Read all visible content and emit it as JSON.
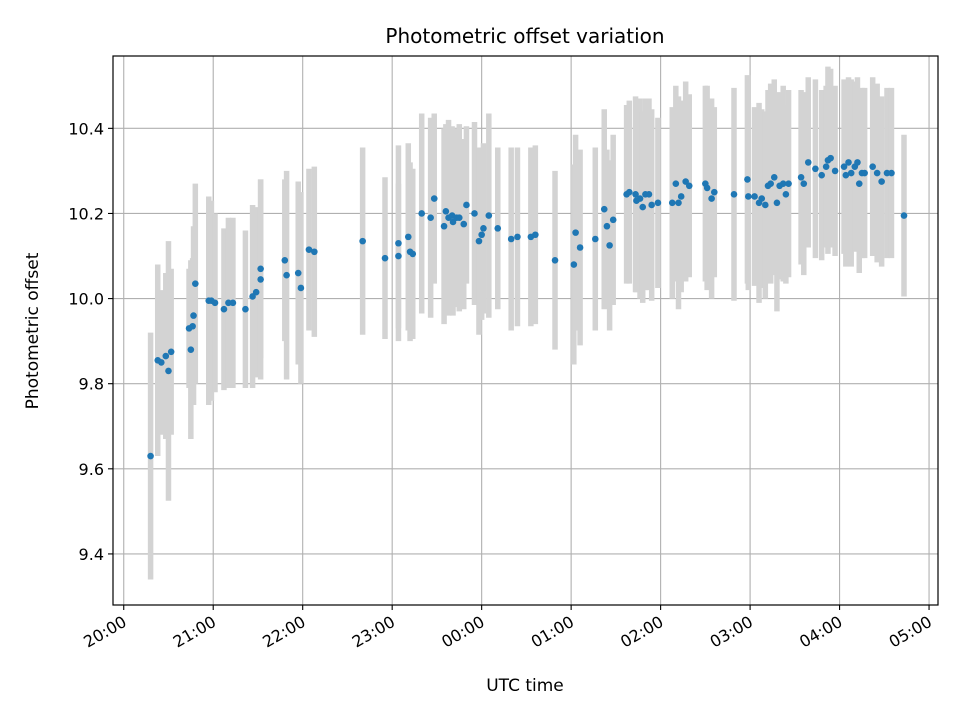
{
  "chart_data": {
    "type": "scatter",
    "title": "Photometric offset variation",
    "xlabel": "UTC time",
    "ylabel": "Photometric offset",
    "x_unit": "hours (UTC, continuous past midnight)",
    "xlim": [
      19.88,
      29.1
    ],
    "ylim": [
      9.28,
      10.57
    ],
    "x_tick_values": [
      20,
      21,
      22,
      23,
      24,
      25,
      26,
      27,
      28,
      29
    ],
    "x_tick_labels": [
      "20:00",
      "21:00",
      "22:00",
      "23:00",
      "00:00",
      "01:00",
      "02:00",
      "03:00",
      "04:00",
      "05:00"
    ],
    "y_ticks": [
      9.4,
      9.6,
      9.8,
      10.0,
      10.2,
      10.4
    ],
    "y_tick_labels": [
      "9.4",
      "9.6",
      "9.8",
      "10.0",
      "10.2",
      "10.4"
    ],
    "grid": true,
    "colors": {
      "point": "#1f77b4",
      "errorbar": "#d3d3d3",
      "grid": "#b0b0b0"
    },
    "x": [
      20.3,
      20.38,
      20.42,
      20.47,
      20.5,
      20.53,
      20.73,
      20.75,
      20.77,
      20.78,
      20.8,
      20.95,
      20.98,
      21.02,
      21.12,
      21.17,
      21.22,
      21.36,
      21.44,
      21.48,
      21.53,
      21.53,
      21.8,
      21.82,
      21.95,
      21.98,
      22.07,
      22.13,
      22.67,
      22.92,
      23.07,
      23.07,
      23.18,
      23.2,
      23.23,
      23.33,
      23.43,
      23.47,
      23.58,
      23.6,
      23.63,
      23.67,
      23.68,
      23.72,
      23.75,
      23.8,
      23.83,
      23.92,
      23.97,
      24.0,
      24.02,
      24.08,
      24.18,
      24.33,
      24.4,
      24.55,
      24.6,
      24.82,
      25.03,
      25.05,
      25.1,
      25.27,
      25.37,
      25.4,
      25.43,
      25.47,
      25.62,
      25.65,
      25.72,
      25.73,
      25.77,
      25.8,
      25.83,
      25.87,
      25.9,
      25.97,
      26.13,
      26.17,
      26.2,
      26.23,
      26.28,
      26.32,
      26.5,
      26.52,
      26.57,
      26.6,
      26.82,
      26.97,
      26.98,
      27.05,
      27.1,
      27.13,
      27.17,
      27.2,
      27.23,
      27.27,
      27.3,
      27.33,
      27.37,
      27.4,
      27.43,
      27.57,
      27.6,
      27.65,
      27.73,
      27.8,
      27.85,
      27.87,
      27.9,
      27.95,
      28.05,
      28.07,
      28.1,
      28.13,
      28.17,
      28.2,
      28.22,
      28.25,
      28.28,
      28.37,
      28.42,
      28.47,
      28.53,
      28.58,
      28.72
    ],
    "y": [
      9.63,
      9.855,
      9.85,
      9.865,
      9.83,
      9.875,
      9.93,
      9.88,
      9.935,
      9.96,
      10.035,
      9.995,
      9.995,
      9.99,
      9.975,
      9.99,
      9.99,
      9.975,
      10.005,
      10.015,
      10.07,
      10.045,
      10.09,
      10.055,
      10.06,
      10.025,
      10.115,
      10.11,
      10.135,
      10.095,
      10.13,
      10.1,
      10.145,
      10.11,
      10.105,
      10.2,
      10.19,
      10.235,
      10.17,
      10.205,
      10.19,
      10.195,
      10.18,
      10.19,
      10.19,
      10.175,
      10.22,
      10.2,
      10.135,
      10.15,
      10.165,
      10.195,
      10.165,
      10.14,
      10.145,
      10.145,
      10.15,
      10.09,
      10.08,
      10.155,
      10.12,
      10.14,
      10.21,
      10.17,
      10.125,
      10.185,
      10.245,
      10.25,
      10.245,
      10.23,
      10.235,
      10.215,
      10.245,
      10.245,
      10.22,
      10.225,
      10.225,
      10.27,
      10.225,
      10.24,
      10.275,
      10.265,
      10.27,
      10.26,
      10.235,
      10.25,
      10.245,
      10.28,
      10.24,
      10.24,
      10.225,
      10.235,
      10.22,
      10.265,
      10.27,
      10.285,
      10.225,
      10.265,
      10.27,
      10.245,
      10.27,
      10.285,
      10.27,
      10.32,
      10.305,
      10.29,
      10.31,
      10.325,
      10.33,
      10.3,
      10.31,
      10.29,
      10.32,
      10.295,
      10.31,
      10.32,
      10.27,
      10.295,
      10.295,
      10.31,
      10.295,
      10.275,
      10.295,
      10.295,
      10.195
    ],
    "error": [
      0.29,
      0.225,
      0.17,
      0.195,
      0.305,
      0.195,
      0.14,
      0.21,
      0.16,
      0.21,
      0.235,
      0.245,
      0.235,
      0.21,
      0.19,
      0.2,
      0.2,
      0.185,
      0.215,
      0.2,
      0.21,
      0.235,
      0.19,
      0.245,
      0.215,
      0.225,
      0.19,
      0.2,
      0.22,
      0.19,
      0.23,
      0.17,
      0.22,
      0.21,
      0.2,
      0.235,
      0.235,
      0.2,
      0.23,
      0.205,
      0.23,
      0.21,
      0.22,
      0.21,
      0.22,
      0.2,
      0.185,
      0.215,
      0.22,
      0.2,
      0.2,
      0.24,
      0.19,
      0.215,
      0.21,
      0.21,
      0.21,
      0.21,
      0.235,
      0.23,
      0.23,
      0.215,
      0.235,
      0.18,
      0.2,
      0.2,
      0.21,
      0.215,
      0.23,
      0.215,
      0.235,
      0.225,
      0.225,
      0.225,
      0.225,
      0.2,
      0.225,
      0.23,
      0.25,
      0.225,
      0.235,
      0.215,
      0.23,
      0.24,
      0.235,
      0.2,
      0.25,
      0.245,
      0.22,
      0.21,
      0.235,
      0.21,
      0.22,
      0.225,
      0.235,
      0.23,
      0.255,
      0.22,
      0.23,
      0.21,
      0.22,
      0.205,
      0.215,
      0.2,
      0.21,
      0.2,
      0.19,
      0.22,
      0.21,
      0.2,
      0.205,
      0.215,
      0.2,
      0.22,
      0.2,
      0.2,
      0.21,
      0.2,
      0.2,
      0.21,
      0.21,
      0.2,
      0.2,
      0.2,
      0.19
    ]
  }
}
